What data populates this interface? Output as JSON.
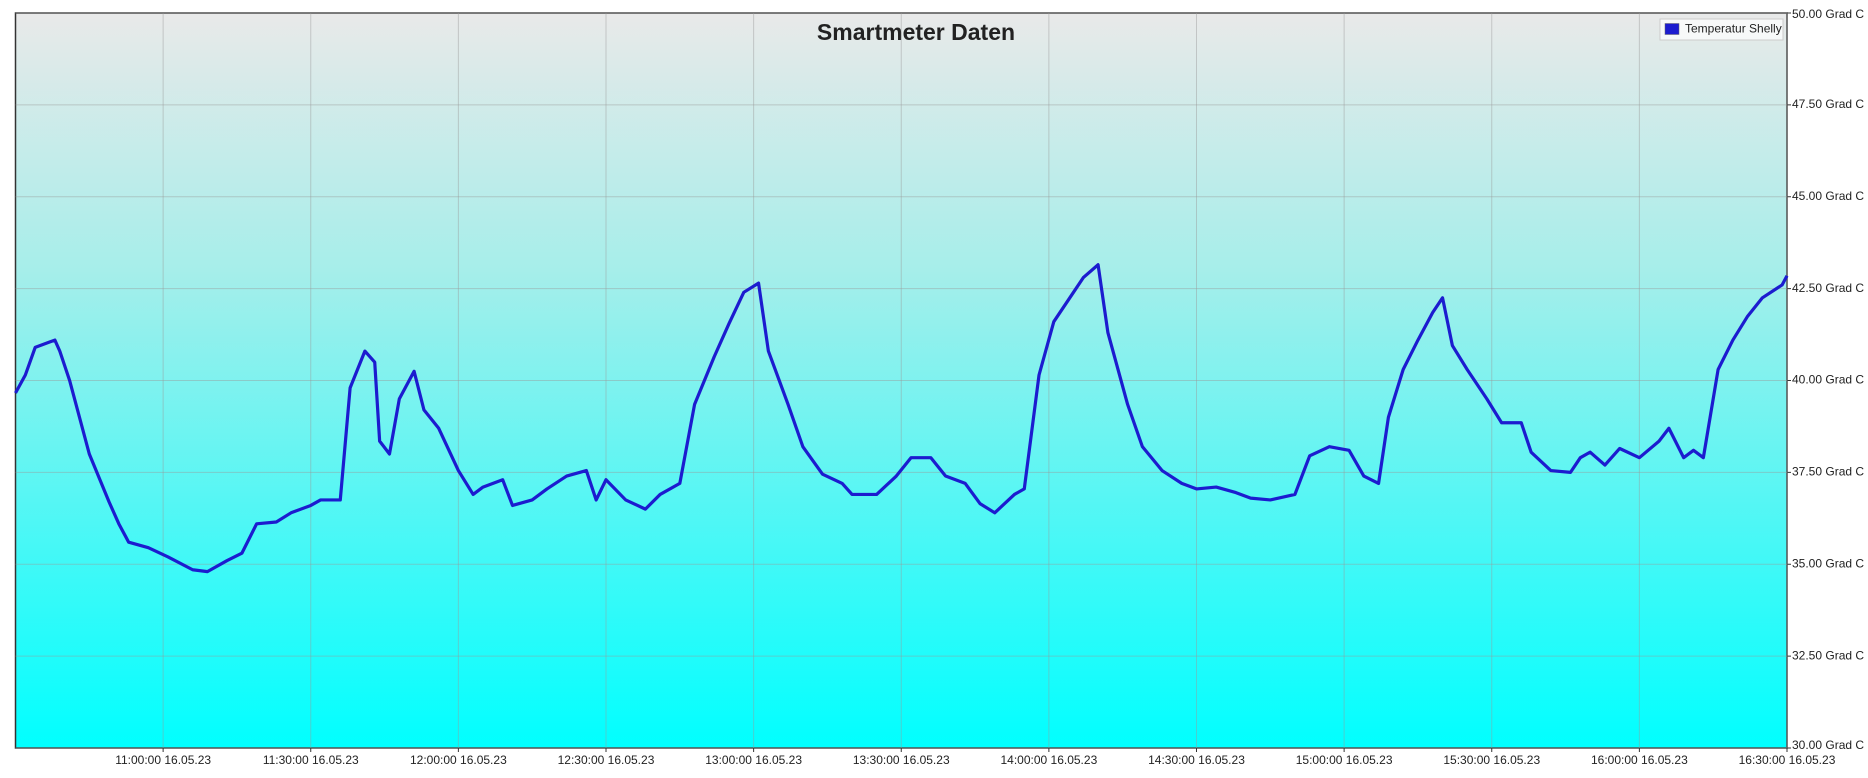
{
  "chart_data": {
    "type": "line",
    "title": "Smartmeter Daten",
    "x": [
      "10:30:00",
      "10:32:00",
      "10:34:00",
      "10:37:00",
      "10:38:00",
      "10:39:00",
      "10:41:00",
      "10:43:00",
      "10:45:00",
      "10:49:00",
      "10:51:00",
      "10:53:00",
      "10:57:00",
      "11:01:00",
      "11:06:00",
      "11:09:00",
      "11:13:00",
      "11:16:00",
      "11:19:00",
      "11:23:00",
      "11:26:00",
      "11:30:00",
      "11:32:00",
      "11:36:00",
      "11:38:00",
      "11:41:00",
      "11:43:00",
      "11:44:00",
      "11:46:00",
      "11:48:00",
      "11:51:00",
      "11:53:00",
      "11:56:00",
      "12:00:00",
      "12:03:00",
      "12:05:00",
      "12:09:00",
      "12:11:00",
      "12:15:00",
      "12:18:00",
      "12:22:00",
      "12:26:00",
      "12:28:00",
      "12:30:00",
      "12:34:00",
      "12:38:00",
      "12:41:00",
      "12:45:00",
      "12:48:00",
      "12:52:00",
      "12:55:00",
      "12:58:00",
      "13:01:00",
      "13:03:00",
      "13:07:00",
      "13:10:00",
      "13:14:00",
      "13:18:00",
      "13:20:00",
      "13:25:00",
      "13:29:00",
      "13:32:00",
      "13:36:00",
      "13:39:00",
      "13:43:00",
      "13:46:00",
      "13:49:00",
      "13:53:00",
      "13:55:00",
      "13:58:00",
      "14:01:00",
      "14:05:00",
      "14:07:00",
      "14:10:00",
      "14:12:00",
      "14:16:00",
      "14:19:00",
      "14:23:00",
      "14:27:00",
      "14:30:00",
      "14:34:00",
      "14:38:00",
      "14:41:00",
      "14:45:00",
      "14:50:00",
      "14:53:00",
      "14:57:00",
      "15:01:00",
      "15:04:00",
      "15:07:00",
      "15:09:00",
      "15:12:00",
      "15:15:00",
      "15:18:00",
      "15:20:00",
      "15:22:00",
      "15:25:00",
      "15:29:00",
      "15:32:00",
      "15:36:00",
      "15:38:00",
      "15:42:00",
      "15:46:00",
      "15:48:00",
      "15:50:00",
      "15:53:00",
      "15:56:00",
      "16:00:00",
      "16:04:00",
      "16:06:00",
      "16:09:00",
      "16:11:00",
      "16:13:00",
      "16:16:00",
      "16:19:00",
      "16:22:00",
      "16:25:00",
      "16:29:00",
      "16:30:00"
    ],
    "series": [
      {
        "name": "Temperatur Shelly",
        "color": "#1c1ccf",
        "values": [
          39.66,
          40.15,
          40.9,
          41.05,
          41.1,
          40.8,
          40.0,
          39.0,
          38.0,
          36.7,
          36.1,
          35.6,
          35.45,
          35.2,
          34.85,
          34.8,
          35.1,
          35.3,
          36.1,
          36.15,
          36.4,
          36.6,
          36.75,
          36.75,
          39.8,
          40.8,
          40.5,
          38.35,
          38.0,
          39.5,
          40.25,
          39.2,
          38.7,
          37.55,
          36.9,
          37.1,
          37.3,
          36.6,
          36.75,
          37.05,
          37.4,
          37.55,
          36.75,
          37.3,
          36.75,
          36.5,
          36.9,
          37.2,
          39.35,
          40.65,
          41.55,
          42.4,
          42.65,
          40.8,
          39.35,
          38.2,
          37.45,
          37.2,
          36.9,
          36.9,
          37.4,
          37.9,
          37.9,
          37.4,
          37.2,
          36.65,
          36.4,
          36.9,
          37.05,
          40.15,
          41.6,
          42.4,
          42.8,
          43.15,
          41.3,
          39.35,
          38.2,
          37.55,
          37.2,
          37.05,
          37.1,
          36.95,
          36.8,
          36.75,
          36.9,
          37.95,
          38.2,
          38.1,
          37.4,
          37.2,
          39.0,
          40.3,
          41.1,
          41.85,
          42.25,
          40.95,
          40.3,
          39.5,
          38.85,
          38.85,
          38.05,
          37.55,
          37.5,
          37.9,
          38.05,
          37.7,
          38.15,
          37.9,
          38.35,
          38.7,
          37.9,
          38.1,
          37.9,
          40.3,
          41.1,
          41.75,
          42.25,
          42.6,
          42.85
        ]
      }
    ],
    "xlim": [
      "10:30:00",
      "16:30:00"
    ],
    "xticks": [
      {
        "value": "11:00:00",
        "label": "11:00:00 16.05.23"
      },
      {
        "value": "11:30:00",
        "label": "11:30:00 16.05.23"
      },
      {
        "value": "12:00:00",
        "label": "12:00:00 16.05.23"
      },
      {
        "value": "12:30:00",
        "label": "12:30:00 16.05.23"
      },
      {
        "value": "13:00:00",
        "label": "13:00:00 16.05.23"
      },
      {
        "value": "13:30:00",
        "label": "13:30:00 16.05.23"
      },
      {
        "value": "14:00:00",
        "label": "14:00:00 16.05.23"
      },
      {
        "value": "14:30:00",
        "label": "14:30:00 16.05.23"
      },
      {
        "value": "15:00:00",
        "label": "15:00:00 16.05.23"
      },
      {
        "value": "15:30:00",
        "label": "15:30:00 16.05.23"
      },
      {
        "value": "16:00:00",
        "label": "16:00:00 16.05.23"
      },
      {
        "value": "16:30:00",
        "label": "16:30:00 16.05.23"
      }
    ],
    "ylim": [
      30,
      50
    ],
    "yticks": [
      {
        "value": 30,
        "label": "30.00 Grad C"
      },
      {
        "value": 32.5,
        "label": "32.50 Grad C"
      },
      {
        "value": 35,
        "label": "35.00 Grad C"
      },
      {
        "value": 37.5,
        "label": "37.50 Grad C"
      },
      {
        "value": 40,
        "label": "40.00 Grad C"
      },
      {
        "value": 42.5,
        "label": "42.50 Grad C"
      },
      {
        "value": 45,
        "label": "45.00 Grad C"
      },
      {
        "value": 47.5,
        "label": "47.50 Grad C"
      },
      {
        "value": 50,
        "label": "50.00 Grad C"
      }
    ],
    "grid": true,
    "legend": "top-right"
  }
}
